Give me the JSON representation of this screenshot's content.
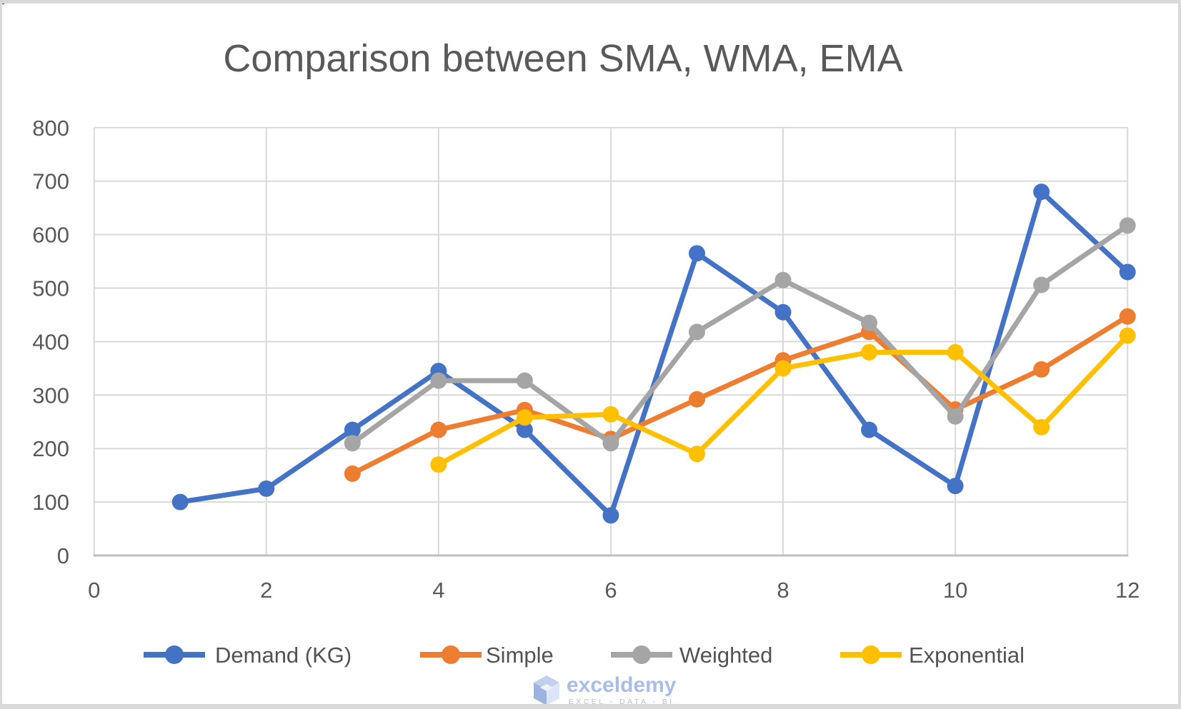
{
  "title": "Comparison between SMA, WMA, EMA",
  "watermark": {
    "name": "exceldemy",
    "tagline": "EXCEL - DATA - BI"
  },
  "colors": {
    "demand": "#4472C4",
    "simple": "#ED7D31",
    "weighted": "#A5A5A5",
    "exponential": "#FFC000",
    "gridline": "#D9D9D9",
    "axis_line": "#BFBFBF",
    "axis_text": "#595959",
    "legend_text": "#525252",
    "title_text": "#595959"
  },
  "chart_data": {
    "type": "line",
    "title": "Comparison between SMA, WMA, EMA",
    "xlabel": "",
    "ylabel": "",
    "xlim": [
      0,
      12
    ],
    "ylim": [
      0,
      800
    ],
    "x_ticks": [
      0,
      2,
      4,
      6,
      8,
      10,
      12
    ],
    "y_ticks": [
      0,
      100,
      200,
      300,
      400,
      500,
      600,
      700,
      800
    ],
    "grid": true,
    "legend_position": "bottom",
    "series": [
      {
        "name": "Demand (KG)",
        "color": "#4472C4",
        "points": [
          [
            1,
            100
          ],
          [
            2,
            125
          ],
          [
            3,
            235
          ],
          [
            4,
            345
          ],
          [
            5,
            235
          ],
          [
            6,
            75
          ],
          [
            7,
            565
          ],
          [
            8,
            455
          ],
          [
            9,
            235
          ],
          [
            10,
            130
          ],
          [
            11,
            680
          ],
          [
            12,
            530
          ]
        ]
      },
      {
        "name": "Simple",
        "color": "#ED7D31",
        "points": [
          [
            3,
            153
          ],
          [
            4,
            235
          ],
          [
            5,
            272
          ],
          [
            6,
            218
          ],
          [
            7,
            292
          ],
          [
            8,
            365
          ],
          [
            9,
            418
          ],
          [
            10,
            273
          ],
          [
            11,
            348
          ],
          [
            12,
            447
          ]
        ]
      },
      {
        "name": "Weighted",
        "color": "#A5A5A5",
        "points": [
          [
            3,
            210
          ],
          [
            4,
            327
          ],
          [
            5,
            327
          ],
          [
            6,
            210
          ],
          [
            7,
            418
          ],
          [
            8,
            515
          ],
          [
            9,
            435
          ],
          [
            10,
            260
          ],
          [
            11,
            506
          ],
          [
            12,
            617
          ]
        ]
      },
      {
        "name": "Exponential",
        "color": "#FFC000",
        "points": [
          [
            4,
            170
          ],
          [
            5,
            258
          ],
          [
            6,
            264
          ],
          [
            7,
            190
          ],
          [
            8,
            350
          ],
          [
            9,
            380
          ],
          [
            10,
            380
          ],
          [
            11,
            240
          ],
          [
            12,
            411
          ]
        ]
      }
    ]
  }
}
